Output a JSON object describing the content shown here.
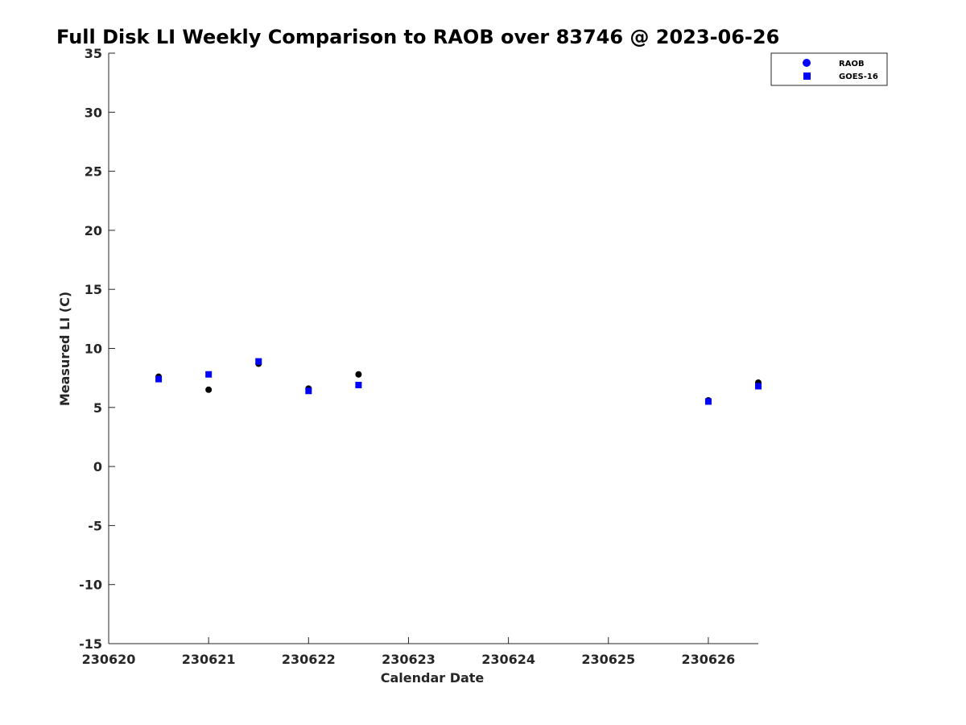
{
  "chart_data": {
    "type": "scatter",
    "title": "Full Disk LI Weekly Comparison to RAOB over 83746 @ 2023-06-26",
    "xlabel": "Calendar Date",
    "ylabel": "Measured LI (C)",
    "xlim": [
      230620,
      230626.5
    ],
    "ylim": [
      -15,
      35
    ],
    "x_ticks": [
      230620,
      230621,
      230622,
      230623,
      230624,
      230625,
      230626
    ],
    "x_tick_labels": [
      "230620",
      "230621",
      "230622",
      "230623",
      "230624",
      "230625",
      "230626"
    ],
    "y_ticks": [
      -15,
      -10,
      -5,
      0,
      5,
      10,
      15,
      20,
      25,
      30,
      35
    ],
    "y_tick_labels": [
      "-15",
      "-10",
      "-5",
      "0",
      "5",
      "10",
      "15",
      "20",
      "25",
      "30",
      "35"
    ],
    "grid": false,
    "legend_position": "top-right",
    "legend": [
      "RAOB",
      "GOES-16"
    ],
    "legend_colors": [
      "#0000ff",
      "#0000ff"
    ],
    "series": [
      {
        "name": "RAOB",
        "marker": "circle",
        "color": "#000000",
        "x": [
          230620.5,
          230621.0,
          230621.5,
          230622.0,
          230622.5,
          230626.0,
          230626.5
        ],
        "y": [
          7.6,
          6.5,
          8.7,
          6.6,
          7.8,
          5.6,
          7.1
        ]
      },
      {
        "name": "GOES-16",
        "marker": "square",
        "color": "#0000ff",
        "x": [
          230620.5,
          230621.0,
          230621.5,
          230622.0,
          230622.5,
          230626.0,
          230626.5
        ],
        "y": [
          7.4,
          7.8,
          8.9,
          6.4,
          6.9,
          5.5,
          6.8
        ]
      }
    ]
  }
}
